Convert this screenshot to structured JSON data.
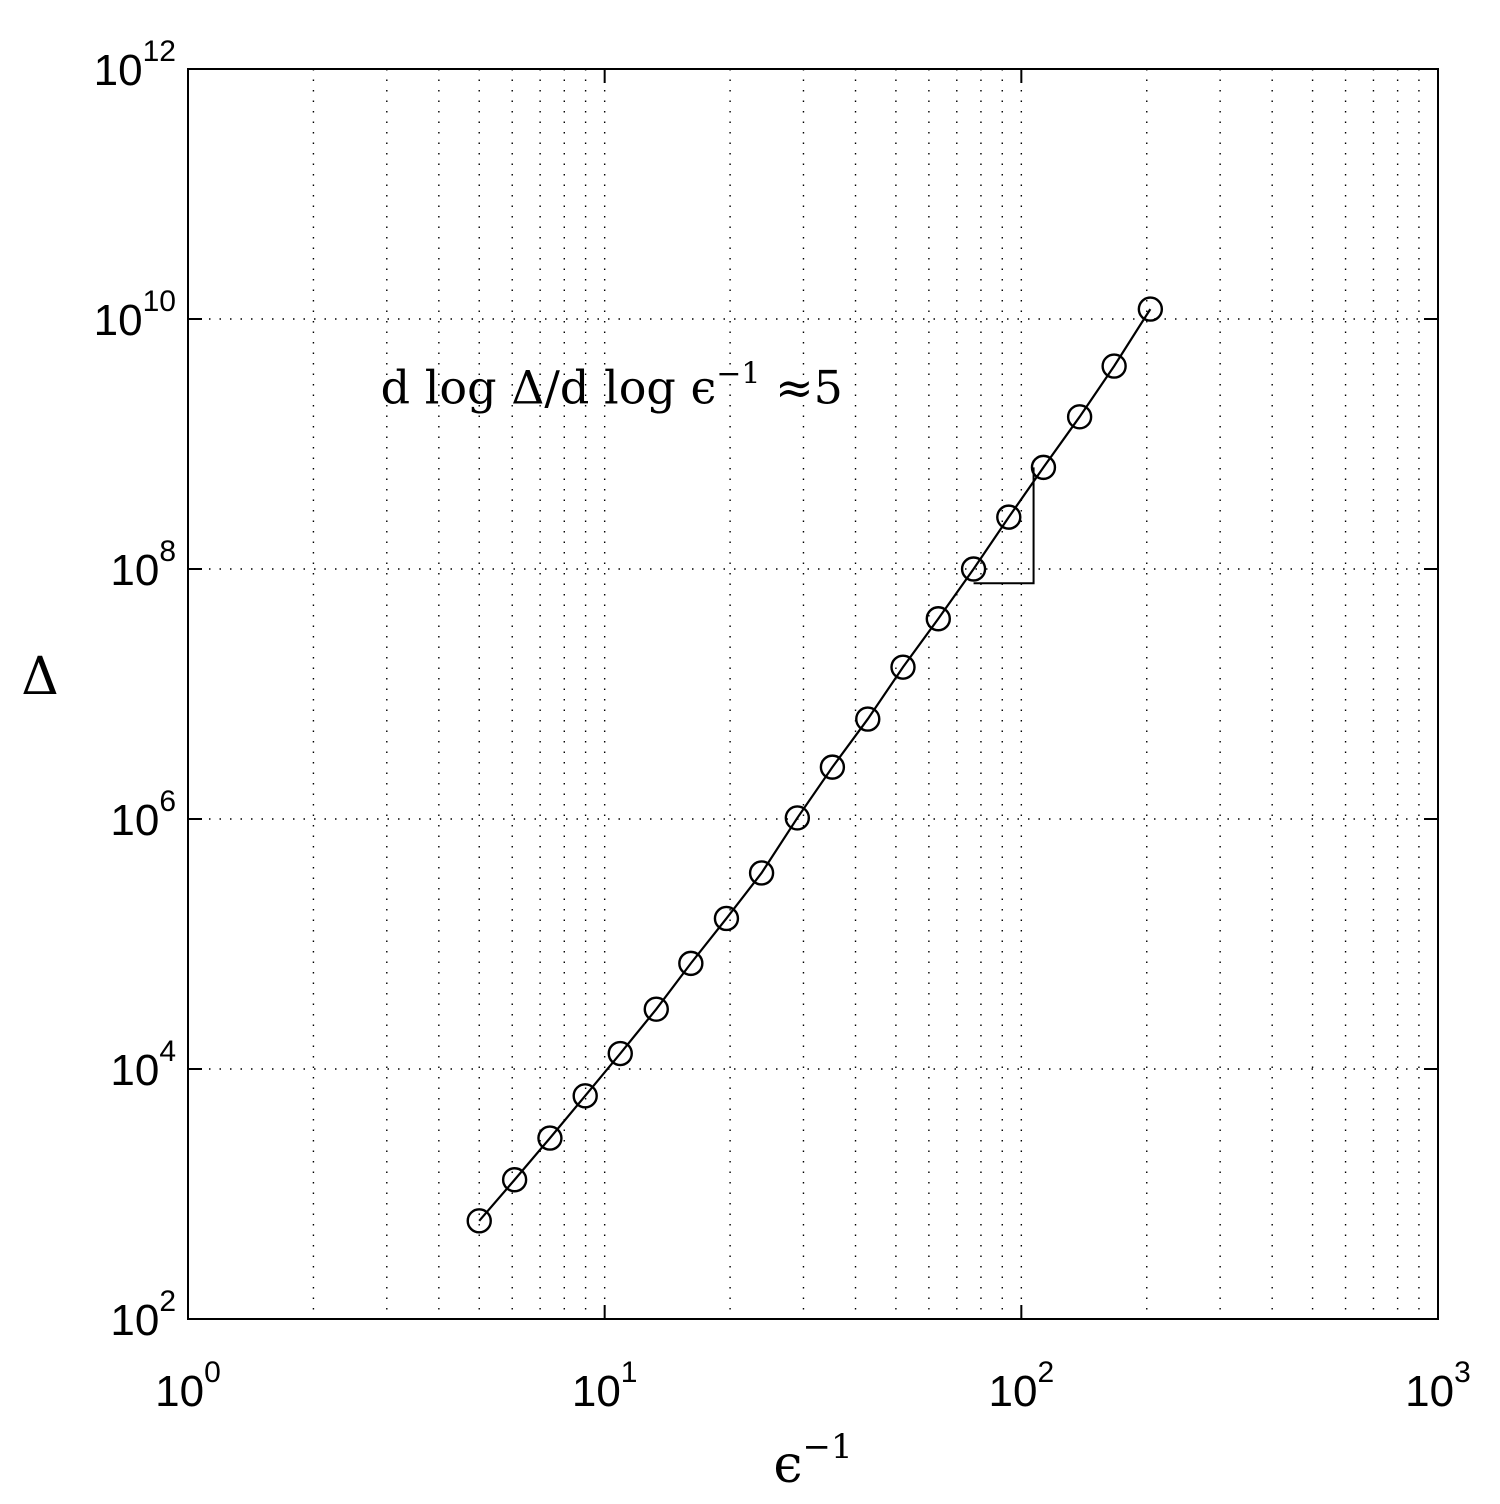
{
  "chart_data": {
    "type": "line",
    "xlabel": "ϵ",
    "xlabel_sup": "−1",
    "ylabel": "Δ",
    "x_scale": "log",
    "y_scale": "log",
    "xlim": [
      1,
      1000
    ],
    "ylim": [
      100,
      1000000000000
    ],
    "grid": true,
    "x_ticks": [
      {
        "base": "10",
        "exp": "0",
        "value": 1
      },
      {
        "base": "10",
        "exp": "1",
        "value": 10
      },
      {
        "base": "10",
        "exp": "2",
        "value": 100
      },
      {
        "base": "10",
        "exp": "3",
        "value": 1000
      }
    ],
    "y_ticks": [
      {
        "base": "10",
        "exp": "2",
        "value": 100
      },
      {
        "base": "10",
        "exp": "4",
        "value": 10000
      },
      {
        "base": "10",
        "exp": "6",
        "value": 1000000
      },
      {
        "base": "10",
        "exp": "8",
        "value": 100000000
      },
      {
        "base": "10",
        "exp": "10",
        "value": 10000000000
      },
      {
        "base": "10",
        "exp": "12",
        "value": 1000000000000
      }
    ],
    "series": [
      {
        "marker": "circle",
        "x": [
          5,
          6.08,
          7.39,
          8.98,
          10.9,
          13.3,
          16.1,
          19.6,
          23.8,
          29,
          35.2,
          42.8,
          52,
          63.2,
          76.8,
          93.3,
          113,
          138,
          167,
          204
        ],
        "y": [
          610,
          1300,
          2800,
          6100,
          13300,
          30100,
          70000,
          160000,
          370000,
          1020000,
          2600000,
          6300000,
          16400000,
          40000000,
          100000000,
          260000000,
          650000000,
          1650000000,
          4200000000,
          12000000000
        ]
      }
    ],
    "slope_triangle": {
      "x": [
        76.8,
        107
      ],
      "y": [
        77000000,
        650000000
      ]
    },
    "annotation": {
      "text": "d log Δ/d log ϵ",
      "sup": "−1",
      "suffix": " ≈5",
      "x": 2.9,
      "y": 2100000000
    }
  }
}
